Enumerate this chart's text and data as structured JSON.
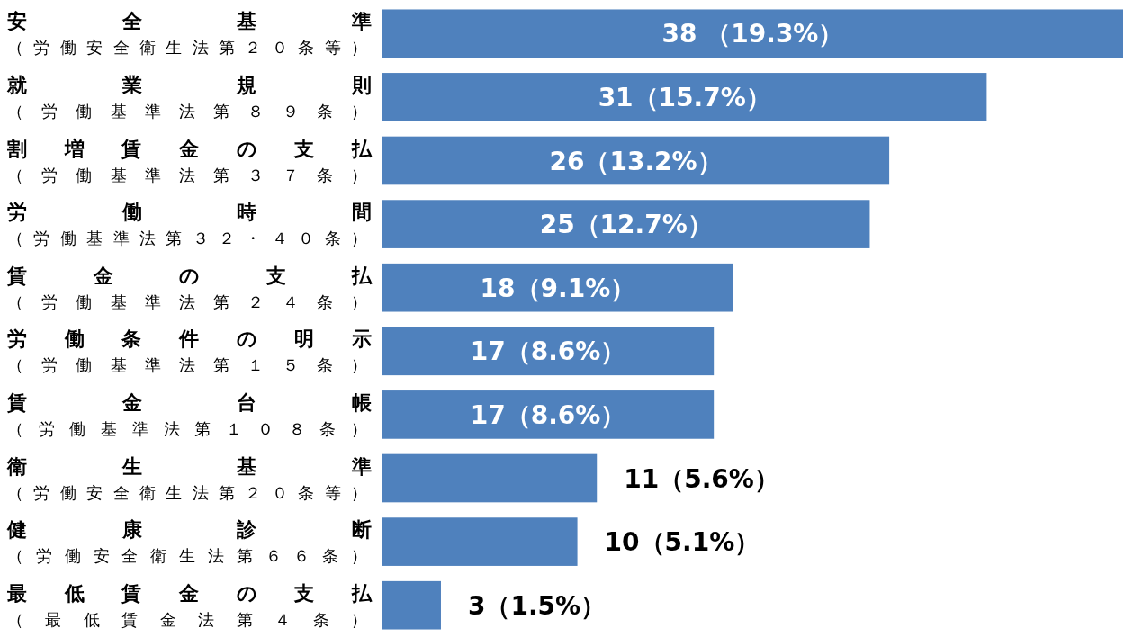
{
  "chart_data": {
    "type": "bar",
    "orientation": "horizontal",
    "categories": [
      "安全基準（労働安全衛生法第２０条等）",
      "就業規則（労働基準法第８９条）",
      "割増賃金の支払（労働基準法第３７条）",
      "労働時間（労働基準法第３２・４０条）",
      "賃金の支払（労働基準法第２４条）",
      "労働条件の明示（労働基準法第１５条）",
      "賃金台帳（労働基準法第１０８条）",
      "衛生基準（労働安全衛生法第２０条等）",
      "健康診断（労働安全衛生法第６６条）",
      "最低賃金の支払（最低賃金法第４条）"
    ],
    "values": [
      38,
      31,
      26,
      25,
      18,
      17,
      17,
      11,
      10,
      3
    ],
    "value_labels": [
      "38 （19.3%）",
      "31（15.7%）",
      "26（13.2%）",
      "25（12.7%）",
      "18（9.1%）",
      "17（8.6%）",
      "17（8.6%）",
      "11（5.6%）",
      "10（5.1%）",
      "3（1.5%）"
    ],
    "color": "#4f81bd",
    "grid": false,
    "legend": false
  }
}
